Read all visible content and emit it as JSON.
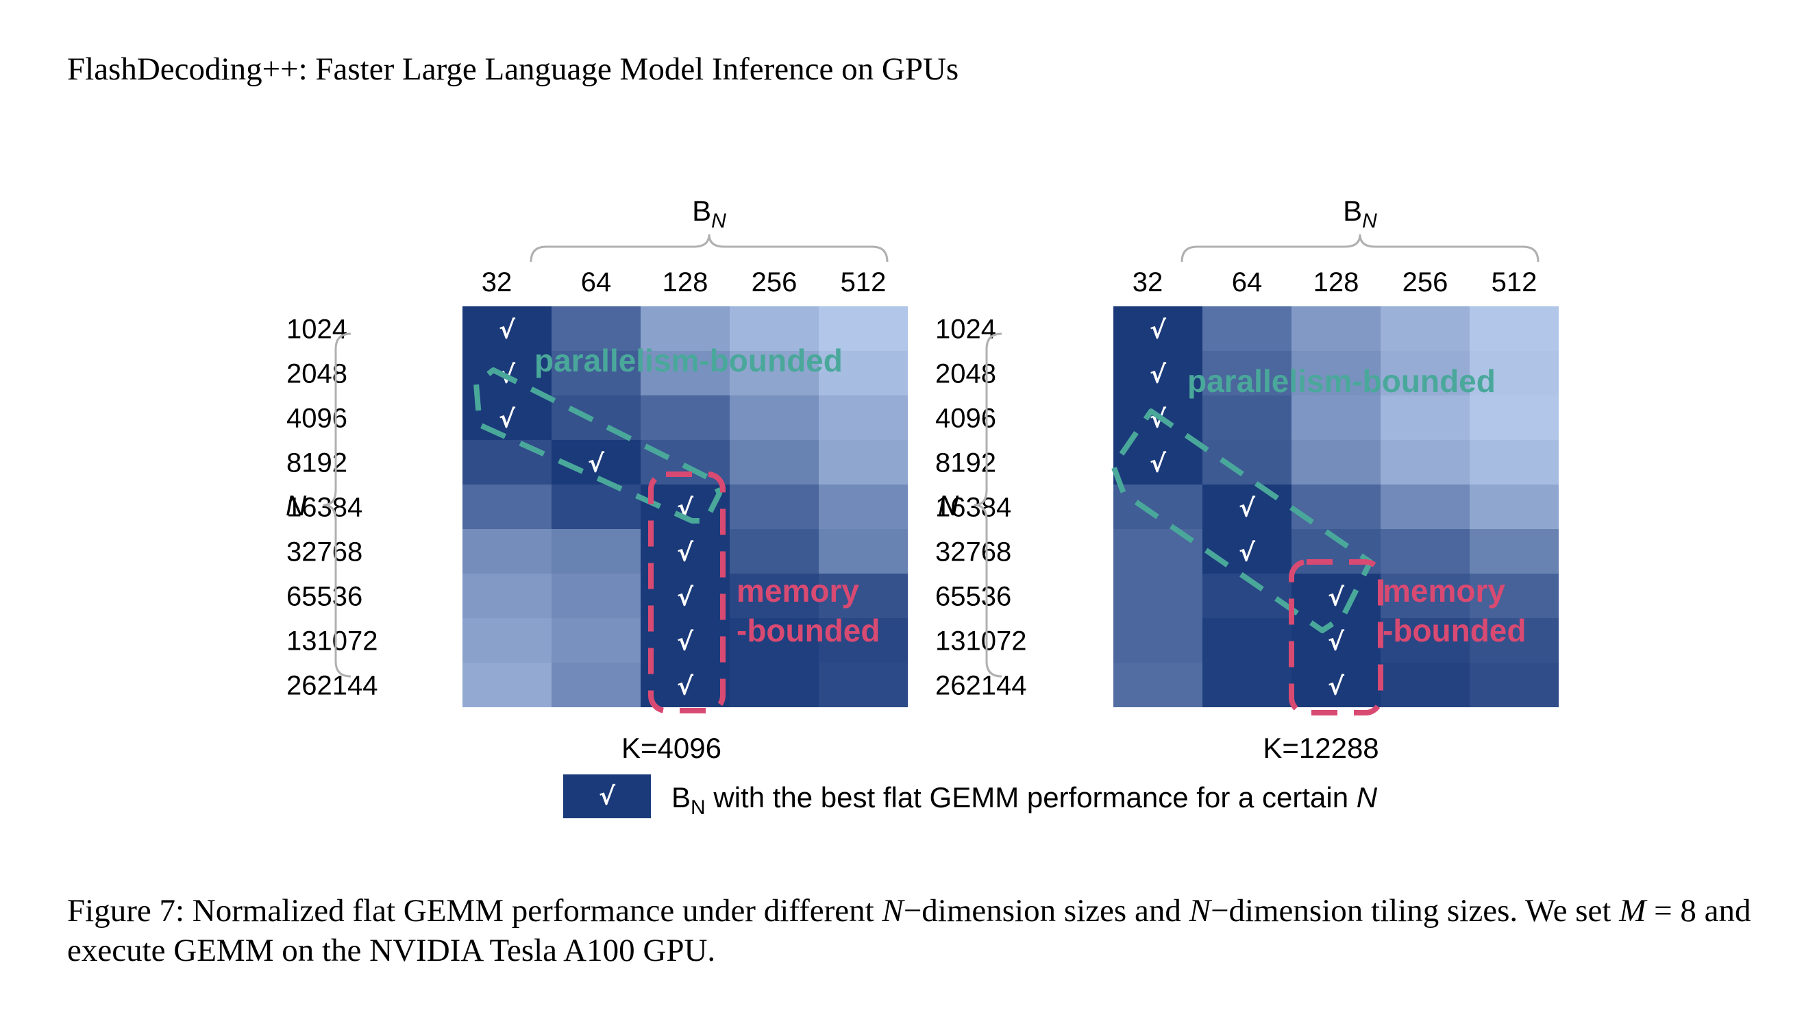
{
  "header": {
    "running_title": "FlashDecoding++: Faster Large Language Model Inference on GPUs"
  },
  "chart_data": [
    {
      "type": "heatmap",
      "k_label": "K=4096",
      "xlabel": "B",
      "xlabel_sub": "N",
      "ylabel": "N",
      "x_categories": [
        "32",
        "64",
        "128",
        "256",
        "512"
      ],
      "y_categories": [
        "1024",
        "2048",
        "4096",
        "8192",
        "16384",
        "32768",
        "65536",
        "131072",
        "262144"
      ],
      "values": [
        [
          1.0,
          0.72,
          0.35,
          0.22,
          0.12
        ],
        [
          1.0,
          0.78,
          0.45,
          0.33,
          0.18
        ],
        [
          1.0,
          0.85,
          0.72,
          0.45,
          0.28
        ],
        [
          0.88,
          1.0,
          0.82,
          0.55,
          0.32
        ],
        [
          0.7,
          0.9,
          1.0,
          0.72,
          0.5
        ],
        [
          0.48,
          0.55,
          1.0,
          0.8,
          0.55
        ],
        [
          0.4,
          0.5,
          1.0,
          0.92,
          0.85
        ],
        [
          0.35,
          0.45,
          1.0,
          0.97,
          0.92
        ],
        [
          0.3,
          0.5,
          1.0,
          0.97,
          0.9
        ]
      ],
      "best_col_index": [
        0,
        0,
        0,
        1,
        2,
        2,
        2,
        2,
        2
      ],
      "check_mark": "√",
      "annotations": [
        "parallelism-bounded",
        "memory",
        "-bounded"
      ]
    },
    {
      "type": "heatmap",
      "k_label": "K=12288",
      "xlabel": "B",
      "xlabel_sub": "N",
      "ylabel": "N",
      "x_categories": [
        "32",
        "64",
        "128",
        "256",
        "512"
      ],
      "y_categories": [
        "1024",
        "2048",
        "4096",
        "8192",
        "16384",
        "32768",
        "65536",
        "131072",
        "262144"
      ],
      "values": [
        [
          1.0,
          0.65,
          0.4,
          0.25,
          0.12
        ],
        [
          1.0,
          0.72,
          0.45,
          0.28,
          0.14
        ],
        [
          1.0,
          0.78,
          0.42,
          0.22,
          0.12
        ],
        [
          1.0,
          0.8,
          0.48,
          0.28,
          0.18
        ],
        [
          0.78,
          1.0,
          0.72,
          0.5,
          0.32
        ],
        [
          0.72,
          1.0,
          0.8,
          0.72,
          0.55
        ],
        [
          0.72,
          0.92,
          1.0,
          0.82,
          0.75
        ],
        [
          0.72,
          0.97,
          1.0,
          0.92,
          0.85
        ],
        [
          0.68,
          0.97,
          1.0,
          0.95,
          0.88
        ]
      ],
      "best_col_index": [
        0,
        0,
        0,
        0,
        1,
        1,
        2,
        2,
        2
      ],
      "check_mark": "√",
      "annotations": [
        "parallelism-bounded",
        "memory",
        "-bounded"
      ]
    }
  ],
  "legend": {
    "swatch_mark": "√",
    "text_pre": "B",
    "text_sub": "N",
    "text_main": " with the best flat GEMM performance for a certain ",
    "text_var": "N"
  },
  "colors": {
    "low": "#c6d9f7",
    "high": "#1b3a7a",
    "parallelism": "#4aa89b",
    "memory": "#d94a72"
  },
  "caption": {
    "fig_label": "Figure 7:",
    "t1": " Normalized flat GEMM performance under different ",
    "v1": "N",
    "t2": "−dimension sizes and ",
    "v2": "N",
    "t3": "−dimension tiling sizes. We set ",
    "v3": "M",
    "t4": " = 8 and execute GEMM on the NVIDIA Tesla A100 GPU."
  }
}
